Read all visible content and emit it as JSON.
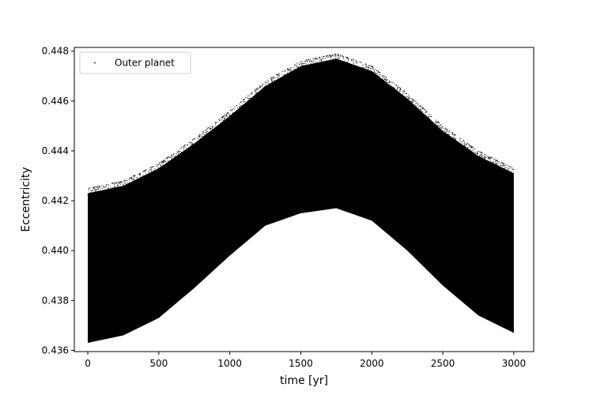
{
  "chart_data": {
    "type": "scatter",
    "title": "",
    "xlabel": "time [yr]",
    "ylabel": "Eccentricity",
    "xlim": [
      -95,
      3140
    ],
    "ylim": [
      0.43595,
      0.44815
    ],
    "xticks": [
      0,
      500,
      1000,
      1500,
      2000,
      2500,
      3000
    ],
    "xtick_labels": [
      "0",
      "500",
      "1000",
      "1500",
      "2000",
      "2500",
      "3000"
    ],
    "yticks": [
      0.436,
      0.438,
      0.44,
      0.442,
      0.444,
      0.446,
      0.448
    ],
    "ytick_labels": [
      "0.436",
      "0.438",
      "0.440",
      "0.442",
      "0.444",
      "0.446",
      "0.448"
    ],
    "grid": false,
    "legend_location": "upper-left",
    "series": [
      {
        "name": "Outer planet",
        "color": "#000000",
        "marker": "point",
        "x_range": [
          0,
          3000
        ],
        "envelope": {
          "x": [
            0,
            250,
            500,
            750,
            1000,
            1250,
            1500,
            1750,
            2000,
            2250,
            2500,
            2750,
            3000
          ],
          "upper": [
            0.4425,
            0.4428,
            0.4435,
            0.4445,
            0.4456,
            0.4468,
            0.4476,
            0.4479,
            0.4474,
            0.4463,
            0.445,
            0.444,
            0.4433
          ],
          "lower": [
            0.4363,
            0.4366,
            0.4373,
            0.4385,
            0.4398,
            0.441,
            0.4415,
            0.4417,
            0.4412,
            0.44,
            0.4386,
            0.4374,
            0.4367
          ]
        }
      }
    ]
  }
}
